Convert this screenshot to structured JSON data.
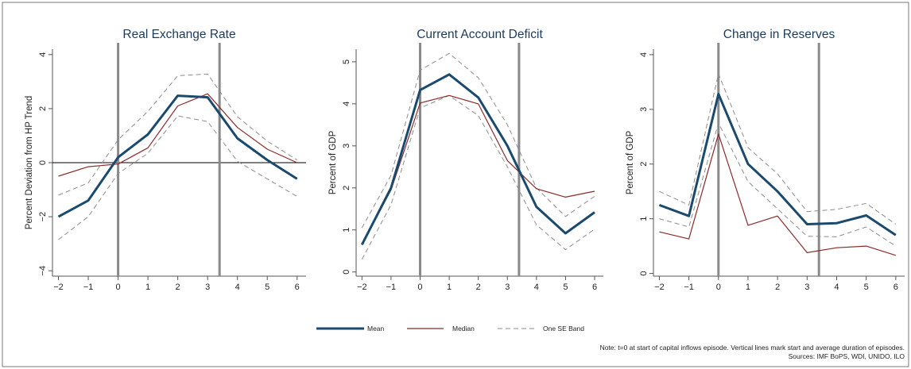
{
  "figure": {
    "colors": {
      "mean": "#1a4a6e",
      "median": "#8b2a2a",
      "band": "#8c8c8c",
      "title": "#1a3a5c",
      "vline": "#8a8a8a",
      "frame": "#555555",
      "background": "#ffffff"
    },
    "legend": {
      "position": "bottom-center",
      "items": [
        {
          "label": "Mean",
          "style": "mean"
        },
        {
          "label": "Median",
          "style": "median"
        },
        {
          "label": "One SE Band",
          "style": "band"
        }
      ]
    },
    "note": "Note: t=0 at start of capital inflows episode. Vertical lines mark start and average duration of episodes.",
    "sources": "Sources: IMF BoPS, WDI, UNIDO, ILO"
  },
  "chart_data": [
    {
      "type": "line",
      "title": "Real Exchange Rate",
      "xlabel": "",
      "ylabel": "Percent Deviation from HP Trend",
      "x": [
        -2,
        -1,
        0,
        1,
        2,
        3,
        4,
        5,
        6
      ],
      "xticks": [
        -2,
        -1,
        0,
        1,
        2,
        3,
        4,
        5,
        6
      ],
      "yticks": [
        -4,
        -2,
        0,
        2,
        4
      ],
      "xlim": [
        -2.2,
        6.3
      ],
      "ylim": [
        -4.2,
        4.2
      ],
      "vlines": [
        0,
        3.4
      ],
      "hline": 0,
      "series": [
        {
          "name": "Mean",
          "style": "mean",
          "values": [
            -2.0,
            -1.4,
            0.2,
            1.05,
            2.48,
            2.42,
            0.9,
            0.1,
            -0.6
          ]
        },
        {
          "name": "Median",
          "style": "median",
          "values": [
            -0.5,
            -0.15,
            -0.05,
            0.55,
            2.1,
            2.55,
            1.3,
            0.5,
            0.0
          ]
        },
        {
          "name": "One SE Band",
          "style": "band",
          "values": [
            -1.2,
            -0.75,
            0.85,
            1.9,
            3.22,
            3.28,
            1.7,
            0.8,
            0.1
          ]
        },
        {
          "style": "band",
          "values": [
            -2.85,
            -2.0,
            -0.4,
            0.35,
            1.73,
            1.52,
            0.05,
            -0.6,
            -1.25
          ]
        }
      ]
    },
    {
      "type": "line",
      "title": "Current Account Deficit",
      "xlabel": "",
      "ylabel": "Percent of GDP",
      "x": [
        -2,
        -1,
        0,
        1,
        2,
        3,
        4,
        5,
        6
      ],
      "xticks": [
        -2,
        -1,
        0,
        1,
        2,
        3,
        4,
        5,
        6
      ],
      "yticks": [
        0,
        1,
        2,
        3,
        4,
        5
      ],
      "xlim": [
        -2.2,
        6.3
      ],
      "ylim": [
        -0.1,
        5.3
      ],
      "vlines": [
        0,
        3.4
      ],
      "hline": null,
      "series": [
        {
          "name": "Mean",
          "style": "mean",
          "values": [
            0.65,
            2.0,
            4.33,
            4.7,
            4.15,
            3.0,
            1.55,
            0.92,
            1.42
          ]
        },
        {
          "name": "Median",
          "style": "median",
          "values": [
            0.65,
            1.95,
            4.02,
            4.2,
            4.0,
            2.65,
            1.98,
            1.78,
            1.92
          ]
        },
        {
          "name": "One SE Band",
          "style": "band",
          "values": [
            1.05,
            2.3,
            4.8,
            5.2,
            4.62,
            3.5,
            2.0,
            1.32,
            1.8
          ]
        },
        {
          "style": "band",
          "values": [
            0.3,
            1.6,
            3.9,
            4.2,
            3.72,
            2.5,
            1.12,
            0.53,
            1.02
          ]
        }
      ]
    },
    {
      "type": "line",
      "title": "Change in Reserves",
      "xlabel": "",
      "ylabel": "Percent of GDP",
      "x": [
        -2,
        -1,
        0,
        1,
        2,
        3,
        4,
        5,
        6
      ],
      "xticks": [
        -2,
        -1,
        0,
        1,
        2,
        3,
        4,
        5,
        6
      ],
      "yticks": [
        0,
        1,
        2,
        3,
        4
      ],
      "xlim": [
        -2.2,
        6.3
      ],
      "ylim": [
        -0.05,
        4.1
      ],
      "vlines": [
        0,
        3.4
      ],
      "hline": null,
      "series": [
        {
          "name": "Mean",
          "style": "mean",
          "values": [
            1.25,
            1.05,
            3.28,
            2.0,
            1.5,
            0.9,
            0.92,
            1.06,
            0.7
          ]
        },
        {
          "name": "Median",
          "style": "median",
          "values": [
            0.76,
            0.63,
            2.55,
            0.88,
            1.05,
            0.38,
            0.47,
            0.5,
            0.33
          ]
        },
        {
          "name": "One SE Band",
          "style": "band",
          "values": [
            1.5,
            1.25,
            3.65,
            2.3,
            1.82,
            1.13,
            1.17,
            1.28,
            0.9
          ]
        },
        {
          "style": "band",
          "values": [
            1.0,
            0.85,
            2.75,
            1.68,
            1.18,
            0.68,
            0.67,
            0.85,
            0.5
          ]
        }
      ]
    }
  ]
}
